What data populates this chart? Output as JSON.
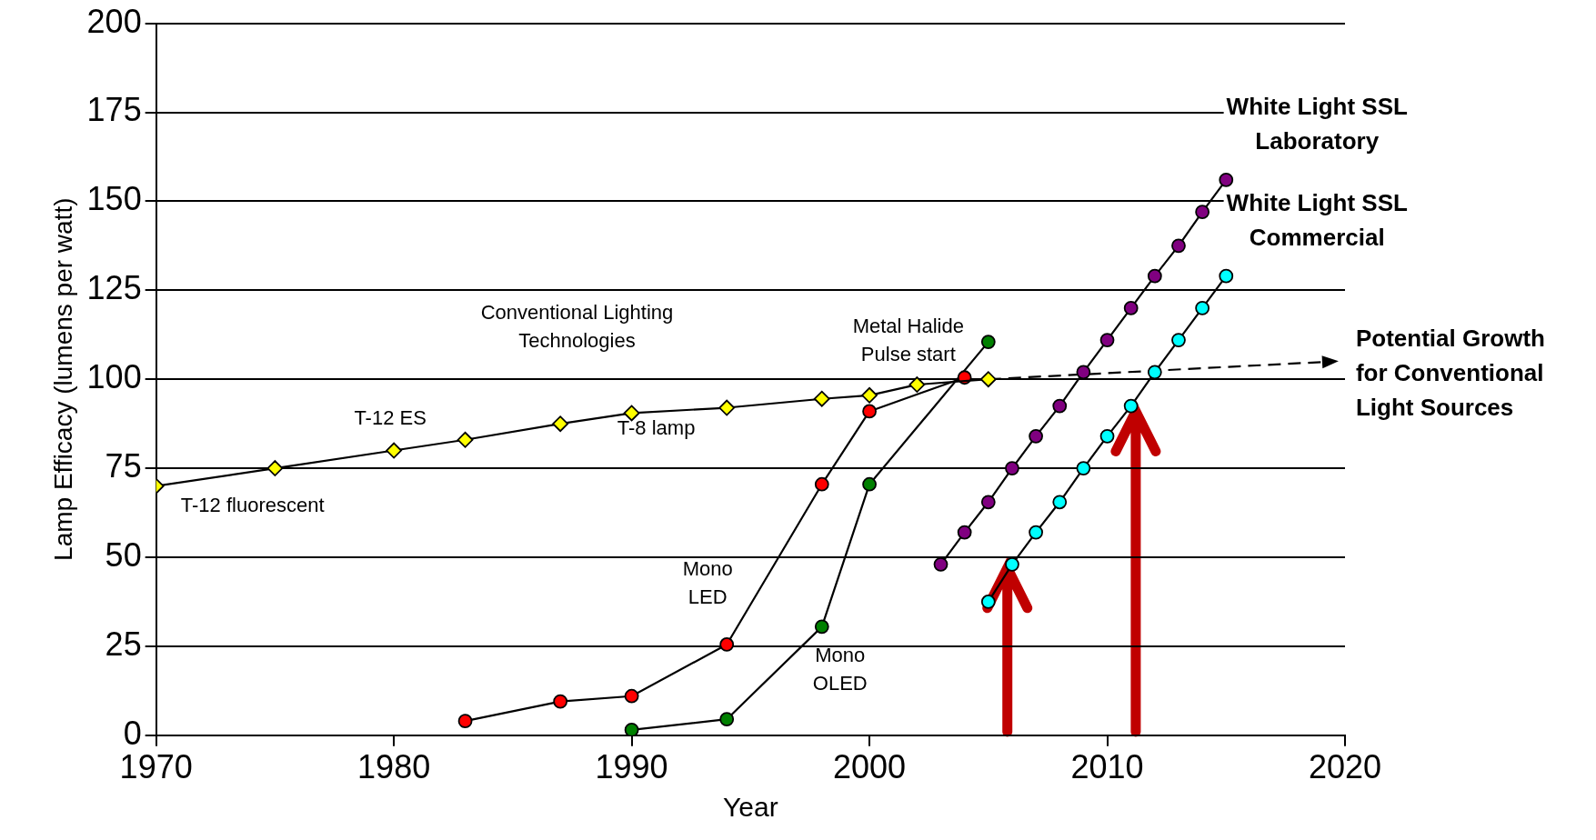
{
  "chart_data": {
    "type": "line",
    "xlabel": "Year",
    "ylabel": "Lamp Efficacy (lumens per watt)",
    "xlim": [
      1970,
      2020
    ],
    "xticks": [
      1970,
      1980,
      1990,
      2000,
      2010,
      2020
    ],
    "ylim": [
      0,
      200
    ],
    "yticks": [
      0,
      25,
      50,
      75,
      100,
      125,
      150,
      175,
      200
    ],
    "grid": "y",
    "legend": false,
    "series": [
      {
        "color": "#ffff00",
        "marker": "diamond",
        "x": [
          1970,
          1975,
          1980,
          1983,
          1987,
          1990,
          1994,
          1998,
          2000,
          2002,
          2005
        ],
        "values": [
          70,
          75,
          80,
          83,
          87.5,
          90.5,
          92,
          94.5,
          95.5,
          98.5,
          100
        ]
      },
      {
        "color": "#ff0000",
        "marker": "circle",
        "x": [
          1983,
          1987,
          1990,
          1994,
          1998,
          2000,
          2004
        ],
        "values": [
          4,
          9.5,
          11,
          25.5,
          70.5,
          91,
          100.5
        ]
      },
      {
        "color": "#008000",
        "marker": "circle",
        "x": [
          1990,
          1994,
          1998,
          2000,
          2005
        ],
        "values": [
          1.5,
          4.5,
          30.5,
          70.5,
          110.5
        ]
      },
      {
        "name": "White Light SSL\nLaboratory",
        "color": "#800080",
        "marker": "circle",
        "x": [
          2003,
          2004,
          2005,
          2006,
          2007,
          2008,
          2009,
          2010,
          2011,
          2012,
          2013,
          2014,
          2015
        ],
        "values": [
          48,
          57,
          65.5,
          75,
          84,
          92.5,
          102,
          111,
          120,
          129,
          137.5,
          147,
          156
        ]
      },
      {
        "name": "White Light SSL\nCommercial",
        "color": "#00ffff",
        "marker": "circle",
        "x": [
          2005,
          2006,
          2007,
          2008,
          2009,
          2010,
          2011,
          2012,
          2013,
          2014,
          2015
        ],
        "values": [
          37.5,
          48,
          57,
          65.5,
          75,
          84,
          92.5,
          102,
          111,
          120,
          129
        ]
      },
      {
        "name": "Potential Growth\nfor Conventional\nLight Sources",
        "color": "#000000",
        "line_style": "dashed",
        "x": [
          2005,
          2019.5
        ],
        "values": [
          100,
          105
        ]
      }
    ],
    "annotations": [
      "Conventional Lighting\nTechnologies",
      {
        "text": "T-12 ES",
        "x": 1980,
        "y": 80
      },
      {
        "text": "T-8 lamp",
        "x": 1990,
        "y": 90.5
      },
      {
        "text": "T-12 fluorescent",
        "x": 1970,
        "y": 70
      },
      {
        "text": "Metal Halide\nPulse start",
        "x": 2005,
        "y": 110.5
      },
      {
        "text": "Mono\nLED",
        "x": 1994,
        "y": 25.5
      },
      {
        "text": "Mono\nOLED",
        "x": 1998,
        "y": 30.5
      }
    ]
  }
}
